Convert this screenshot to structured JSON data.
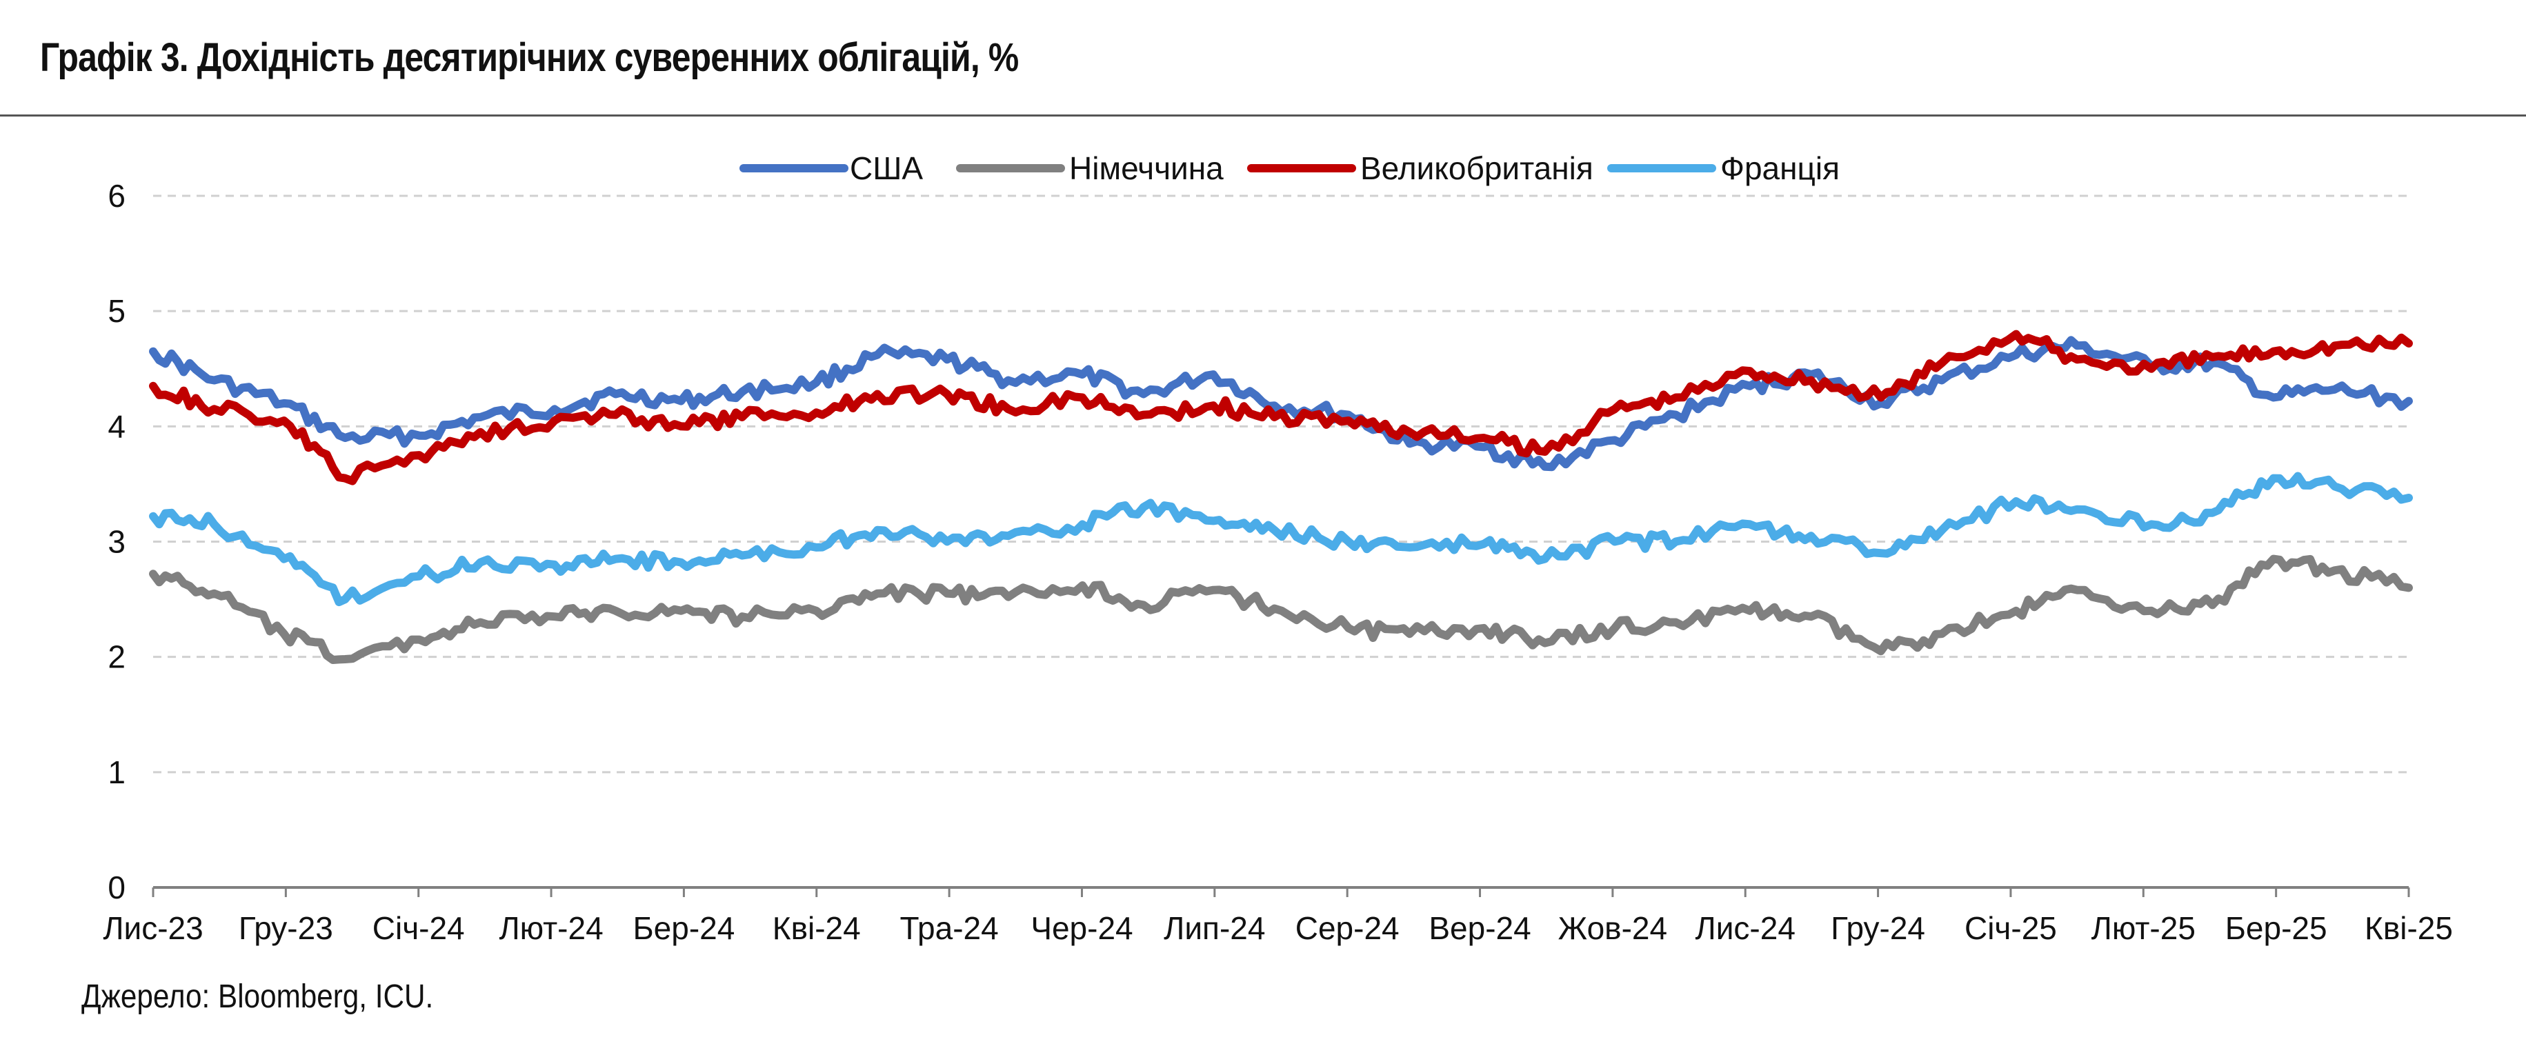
{
  "title": "Графік 3. Дохідність десятирічних суверенних облігацій, %",
  "source": "Джерело: Bloomberg, ICU.",
  "chart_data": {
    "type": "line",
    "title": "Графік 3. Дохідність десятирічних суверенних облігацій, %",
    "xlabel": "",
    "ylabel": "",
    "ylim": [
      0,
      6
    ],
    "yticks": [
      "0",
      "1",
      "2",
      "3",
      "4",
      "5",
      "6"
    ],
    "grid": "horizontal dashed",
    "legend": "top-center",
    "x_ticks": [
      "Лис-23",
      "Гру-23",
      "Січ-24",
      "Лют-24",
      "Бер-24",
      "Кві-24",
      "Тра-24",
      "Чер-24",
      "Лип-24",
      "Сер-24",
      "Вер-24",
      "Жов-24",
      "Лис-24",
      "Гру-24",
      "Січ-25",
      "Лют-25",
      "Бер-25",
      "Кві-25"
    ],
    "x": [
      "2023-11-01",
      "2023-11-15",
      "2023-12-01",
      "2023-12-15",
      "2024-01-01",
      "2024-01-15",
      "2024-02-01",
      "2024-02-15",
      "2024-03-01",
      "2024-03-15",
      "2024-04-01",
      "2024-04-15",
      "2024-05-01",
      "2024-05-15",
      "2024-06-01",
      "2024-06-15",
      "2024-07-01",
      "2024-07-15",
      "2024-08-01",
      "2024-08-15",
      "2024-09-01",
      "2024-09-15",
      "2024-10-01",
      "2024-10-15",
      "2024-11-01",
      "2024-11-15",
      "2024-12-01",
      "2024-12-15",
      "2025-01-01",
      "2025-01-15",
      "2025-02-01",
      "2025-02-15",
      "2025-03-01",
      "2025-03-15",
      "2025-04-01"
    ],
    "series": [
      {
        "name": "США",
        "color": "#4472C4",
        "values": [
          4.65,
          4.4,
          4.2,
          3.9,
          3.92,
          4.08,
          4.15,
          4.28,
          4.22,
          4.3,
          4.38,
          4.62,
          4.58,
          4.4,
          4.45,
          4.28,
          4.45,
          4.18,
          4.1,
          3.85,
          3.82,
          3.65,
          3.88,
          4.1,
          4.35,
          4.45,
          4.2,
          4.4,
          4.62,
          4.7,
          4.52,
          4.55,
          4.25,
          4.32,
          4.22
        ]
      },
      {
        "name": "Німеччина",
        "color": "#808080",
        "values": [
          2.72,
          2.55,
          2.2,
          1.98,
          2.15,
          2.3,
          2.35,
          2.4,
          2.4,
          2.35,
          2.4,
          2.55,
          2.55,
          2.52,
          2.62,
          2.45,
          2.58,
          2.42,
          2.25,
          2.2,
          2.25,
          2.12,
          2.25,
          2.3,
          2.4,
          2.35,
          2.05,
          2.2,
          2.4,
          2.58,
          2.4,
          2.45,
          2.85,
          2.75,
          2.6
        ]
      },
      {
        "name": "Великобританія",
        "color": "#C00000",
        "values": [
          4.35,
          4.15,
          4.05,
          3.55,
          3.75,
          3.95,
          4.05,
          4.1,
          4.0,
          4.08,
          4.12,
          4.28,
          4.28,
          4.15,
          4.25,
          4.1,
          4.18,
          4.08,
          4.05,
          3.95,
          3.9,
          3.78,
          4.15,
          4.25,
          4.48,
          4.4,
          4.25,
          4.55,
          4.8,
          4.58,
          4.5,
          4.6,
          4.65,
          4.7,
          4.72
        ]
      },
      {
        "name": "Франція",
        "color": "#4BACE8",
        "values": [
          3.22,
          3.15,
          2.85,
          2.5,
          2.7,
          2.82,
          2.8,
          2.85,
          2.82,
          2.88,
          2.95,
          3.1,
          3.0,
          3.05,
          3.15,
          3.3,
          3.18,
          3.1,
          3.0,
          2.95,
          2.98,
          2.85,
          3.0,
          3.0,
          3.15,
          3.05,
          2.9,
          3.1,
          3.35,
          3.28,
          3.15,
          3.25,
          3.55,
          3.48,
          3.38
        ]
      }
    ]
  }
}
